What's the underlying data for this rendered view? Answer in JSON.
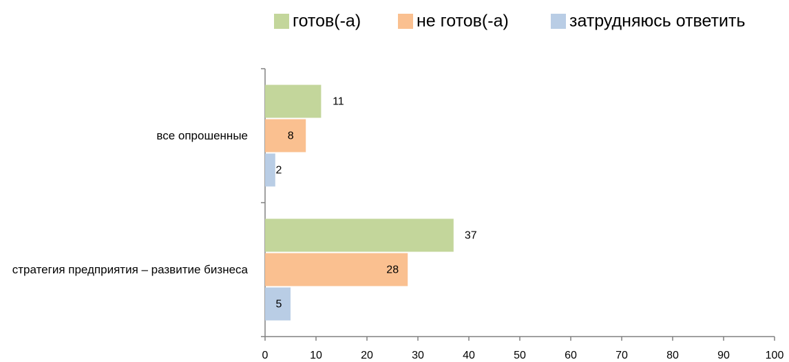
{
  "chart_data": {
    "type": "barh",
    "categories": [
      "все опрошенные",
      "стратегия предприятия – развитие бизнеса"
    ],
    "series": [
      {
        "name": "готов(-а)",
        "color": "#c3d69b",
        "values": [
          11,
          37
        ]
      },
      {
        "name": "не готов(-а)",
        "color": "#fac090",
        "values": [
          8,
          28
        ]
      },
      {
        "name": "затрудняюсь ответить",
        "color": "#b9cde5",
        "values": [
          2,
          5
        ]
      }
    ],
    "xlim": [
      0,
      100
    ],
    "xticks": [
      0,
      10,
      20,
      30,
      40,
      50,
      60,
      70,
      80,
      90,
      100
    ],
    "legend": "top"
  }
}
